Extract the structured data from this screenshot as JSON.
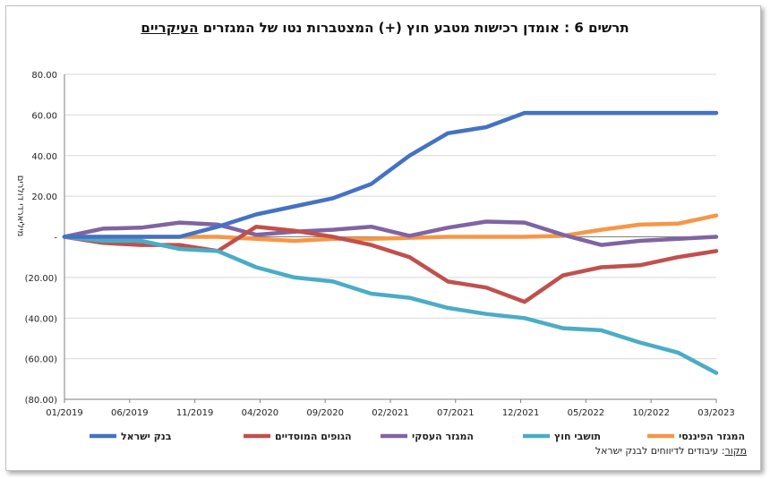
{
  "title": {
    "main": "תרשים 6 : אומדן רכישות מטבע חוץ (+) המצטברות נטו של המגזרים ",
    "underlined": "העיקריים"
  },
  "source": {
    "label": "מקור",
    "text": ": עיבודים לדיווחים לבנק ישראל"
  },
  "chart_data": {
    "type": "line",
    "ylabel": "מיליארדי דולרים",
    "ylim": [
      -80,
      80
    ],
    "yticks": [
      80,
      60,
      40,
      20,
      0,
      -20,
      -40,
      -60,
      -80
    ],
    "ytick_labels": [
      "80.00",
      "60.00",
      "40.00",
      "20.00",
      "-",
      "(20.00)",
      "(40.00)",
      "(60.00)",
      "(80.00)"
    ],
    "x": [
      "01/2019",
      "04/2019",
      "07/2019",
      "10/2019",
      "01/2020",
      "04/2020",
      "07/2020",
      "10/2020",
      "01/2021",
      "04/2021",
      "07/2021",
      "10/2021",
      "01/2022",
      "04/2022",
      "07/2022",
      "10/2022",
      "01/2023",
      "04/2023"
    ],
    "xtick_labels": [
      "01/2019",
      "06/2019",
      "11/2019",
      "04/2020",
      "09/2020",
      "02/2021",
      "07/2021",
      "12/2021",
      "05/2022",
      "10/2022",
      "03/2023"
    ],
    "grid": "horizontal",
    "legend_position": "bottom",
    "series": [
      {
        "name": "בנק ישראל",
        "color": "#4472c4",
        "values": [
          0,
          0,
          0,
          0,
          5,
          11,
          15,
          19,
          26,
          40,
          51,
          54,
          61,
          61,
          61,
          61,
          61,
          61
        ]
      },
      {
        "name": "הגופים המוסדיים",
        "color": "#c0504d",
        "values": [
          0,
          -3,
          -4,
          -4,
          -7,
          5,
          3,
          0,
          -4,
          -10,
          -22,
          -25,
          -32,
          -19,
          -15,
          -14,
          -10,
          -7
        ]
      },
      {
        "name": "המגזר העסקי",
        "color": "#8064a2",
        "values": [
          0,
          4,
          4.5,
          7,
          6,
          1,
          2.5,
          3.5,
          5,
          0.5,
          4.5,
          7.5,
          7,
          1,
          -4,
          -2,
          -1,
          0
        ]
      },
      {
        "name": "תושבי חוץ",
        "color": "#4bacc6",
        "values": [
          0,
          -2,
          -2,
          -6,
          -7,
          -15,
          -20,
          -22,
          -28,
          -30,
          -35,
          -38,
          -40,
          -45,
          -46,
          -52,
          -57,
          -67
        ]
      },
      {
        "name": "המגזר הפיננסי",
        "color": "#f79646",
        "values": [
          0,
          0,
          0,
          0,
          0,
          -1,
          -2,
          -1,
          -1,
          -0.5,
          0,
          0,
          0,
          0.5,
          3.5,
          6,
          6.5,
          10.5
        ]
      }
    ]
  }
}
